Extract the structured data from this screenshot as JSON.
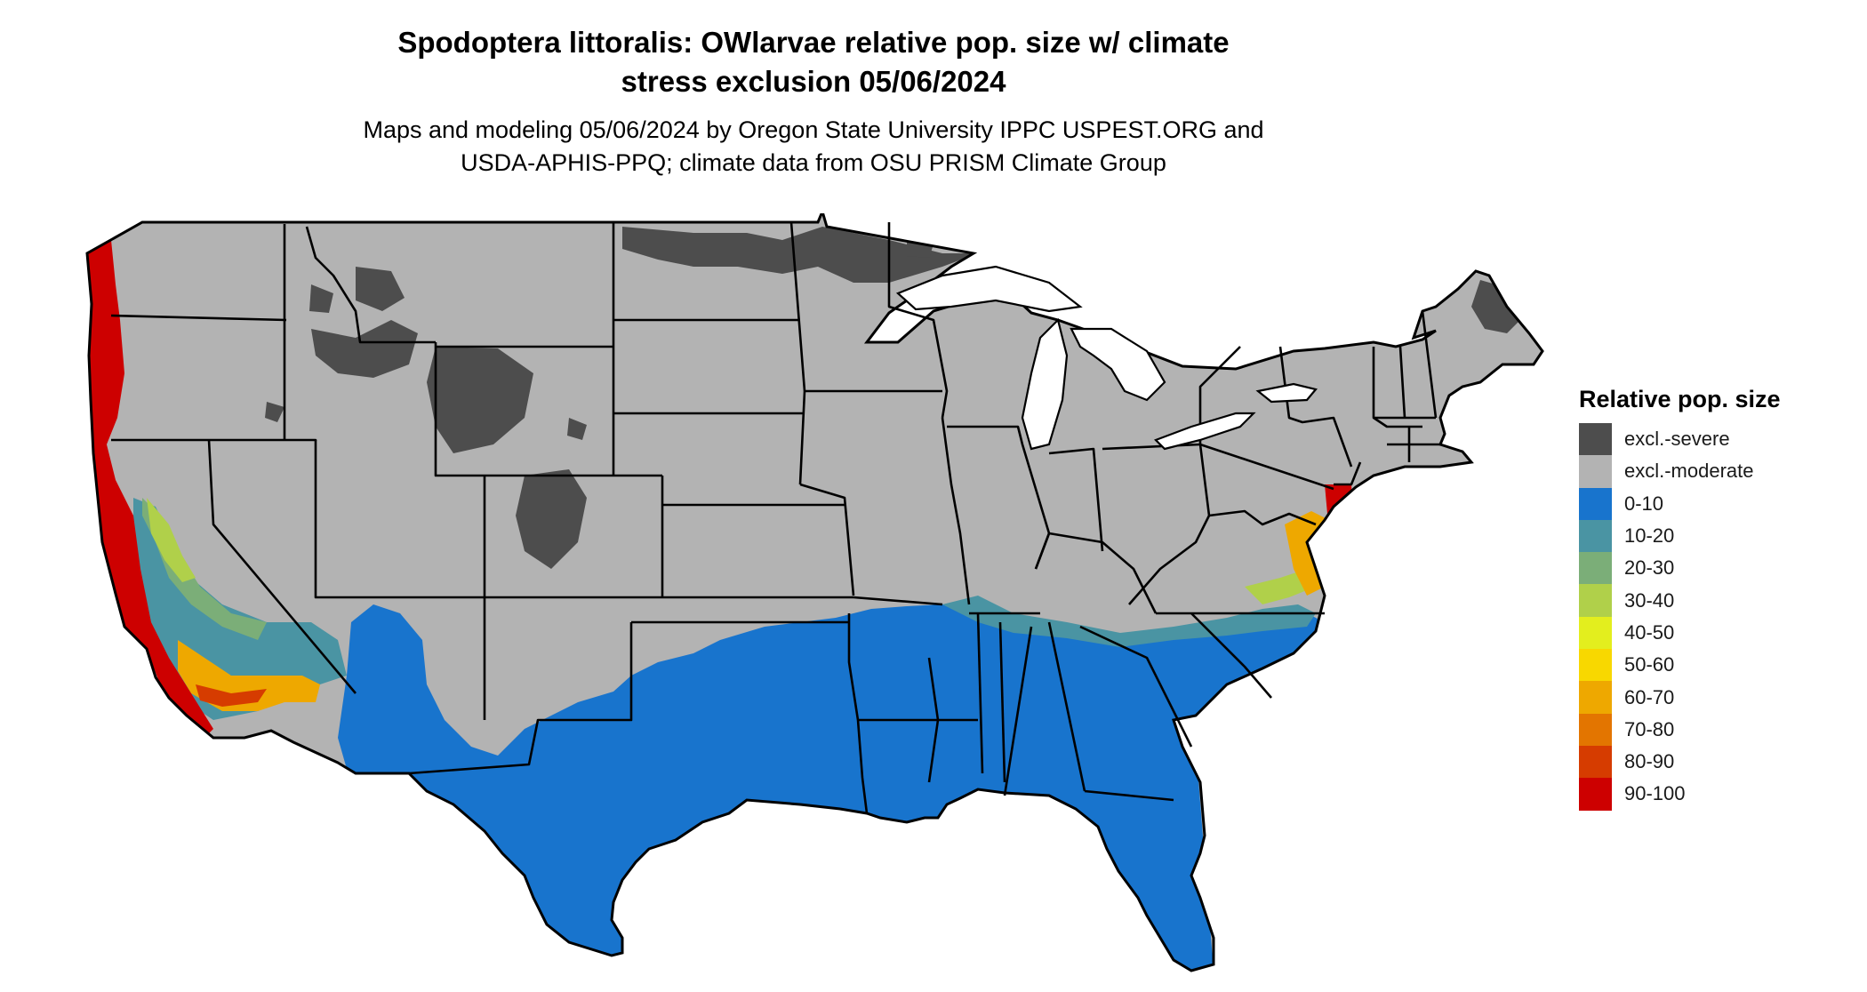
{
  "header": {
    "title_line1": "Spodoptera littoralis: OWlarvae relative pop. size w/ climate",
    "title_line2": "stress exclusion 05/06/2024",
    "subtitle_line1": "Maps and modeling 05/06/2024 by Oregon State University IPPC USPEST.ORG and",
    "subtitle_line2": "USDA-APHIS-PPQ; climate data from OSU PRISM Climate Group"
  },
  "legend": {
    "title": "Relative pop. size",
    "items": [
      {
        "label": "excl.-severe",
        "color": "#4d4d4d"
      },
      {
        "label": "excl.-moderate",
        "color": "#b3b3b3"
      },
      {
        "label": "0-10",
        "color": "#1874cd"
      },
      {
        "label": "10-20",
        "color": "#4a94a3"
      },
      {
        "label": "20-30",
        "color": "#7bae78"
      },
      {
        "label": "30-40",
        "color": "#b0d04a"
      },
      {
        "label": "40-50",
        "color": "#e3ee1e"
      },
      {
        "label": "50-60",
        "color": "#f8d800"
      },
      {
        "label": "60-70",
        "color": "#eea800"
      },
      {
        "label": "70-80",
        "color": "#e37500"
      },
      {
        "label": "80-90",
        "color": "#d63c00"
      },
      {
        "label": "90-100",
        "color": "#cd0000"
      }
    ]
  }
}
